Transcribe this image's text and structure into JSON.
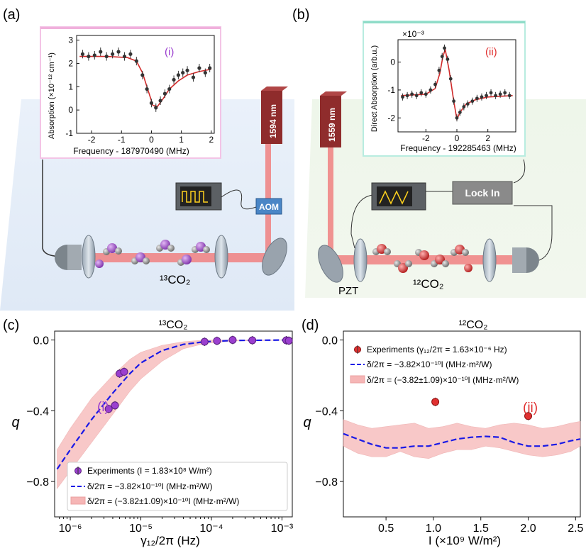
{
  "panels": {
    "a": {
      "label": "(a)",
      "inset": {
        "tag": "(i)",
        "ylabel": "Absorption (×10⁻¹² cm⁻¹)",
        "xlabel": "Frequency - 187970490 (MHz)",
        "yticks": [
          "3",
          "2",
          "1",
          "0",
          "-1"
        ],
        "xticks": [
          "-2",
          "-1",
          "0",
          "1",
          "2"
        ]
      },
      "laser": "1594 nm",
      "aom": "AOM",
      "gas": "¹³CO₂"
    },
    "b": {
      "label": "(b)",
      "inset": {
        "tag": "(ii)",
        "scale": "×10⁻³",
        "ylabel": "Direct Absorption (arb.u.)",
        "xlabel": "Frequency - 192285463 (MHz)",
        "yticks": [
          "0",
          "-1",
          "-2"
        ],
        "xticks": [
          "-2",
          "0",
          "2"
        ]
      },
      "laser": "1559 nm",
      "lockin": "Lock In",
      "pzt": "PZT",
      "gas": "¹²CO₂"
    },
    "c": {
      "label": "(c)",
      "title": "¹³CO₂",
      "ylabel": "q",
      "xlabel": "γ₁₂/2π (Hz)",
      "yticks": [
        "0.0",
        "−0.4",
        "−0.8"
      ],
      "xticks": [
        "10⁻⁶",
        "10⁻⁵",
        "10⁻⁴",
        "10⁻³"
      ],
      "annotation": "(i)",
      "legend": [
        "Experiments (I = 1.83×10⁸ W/m²)",
        "δ/2π = −3.82×10⁻¹⁰I (MHz·m²/W)",
        "δ/2π = (−3.82±1.09)×10⁻¹⁰I (MHz·m²/W)"
      ]
    },
    "d": {
      "label": "(d)",
      "title": "¹²CO₂",
      "ylabel": "q",
      "xlabel": "I (×10⁹ W/m²)",
      "yticks": [
        "0.0",
        "−0.4",
        "−0.8"
      ],
      "xticks": [
        "0.5",
        "1.0",
        "1.5",
        "2.0",
        "2.5"
      ],
      "annotation": "(ii)",
      "legend": [
        "Experiments (γ₁₂/2π = 1.63×10⁻⁶ Hz)",
        "δ/2π = −3.82×10⁻¹⁰I (MHz·m²/W)",
        "δ/2π = (−3.82±1.09)×10⁻¹⁰I (MHz·m²/W)"
      ]
    }
  },
  "colors": {
    "purple": "#9b3fcf",
    "red": "#e03030",
    "blue": "#1a1ae6",
    "band": "#f6b6b6",
    "laserbeam": "#f07070",
    "laserbox": "#8f2c2c"
  },
  "chart_data": [
    {
      "type": "scatter",
      "panel": "a-inset",
      "x": [
        -2.3,
        -2.1,
        -1.9,
        -1.7,
        -1.5,
        -1.3,
        -1.1,
        -0.9,
        -0.7,
        -0.5,
        -0.3,
        -0.15,
        0.0,
        0.15,
        0.3,
        0.45,
        0.6,
        0.75,
        0.9,
        1.05,
        1.2,
        1.4,
        1.6,
        1.8,
        1.95
      ],
      "y": [
        2.4,
        2.3,
        2.35,
        2.5,
        2.3,
        2.4,
        2.5,
        2.3,
        2.4,
        2.1,
        1.5,
        0.9,
        0.3,
        0.1,
        0.4,
        0.7,
        0.9,
        1.3,
        1.5,
        1.6,
        1.7,
        1.4,
        1.8,
        1.6,
        1.8
      ],
      "fit_x": [
        -2.4,
        -1.5,
        -0.8,
        -0.5,
        -0.3,
        -0.1,
        0.05,
        0.2,
        0.4,
        0.6,
        0.9,
        1.2,
        1.6,
        2.0
      ],
      "fit_y": [
        2.3,
        2.3,
        2.25,
        2.1,
        1.6,
        0.8,
        0.2,
        0.15,
        0.5,
        0.9,
        1.25,
        1.5,
        1.65,
        1.75
      ],
      "xlim": [
        -2.5,
        2.1
      ],
      "ylim": [
        -1,
        3.2
      ]
    },
    {
      "type": "scatter",
      "panel": "b-inset",
      "x": [
        -3.5,
        -3.2,
        -2.9,
        -2.6,
        -2.3,
        -2.0,
        -1.7,
        -1.4,
        -1.15,
        -0.95,
        -0.8,
        -0.6,
        -0.4,
        -0.2,
        0.0,
        0.2,
        0.45,
        0.7,
        1.0,
        1.3,
        1.6,
        1.9,
        2.2,
        2.5,
        2.8,
        3.1,
        3.4
      ],
      "y": [
        -1.25,
        -1.2,
        -1.15,
        -1.2,
        -1.1,
        -1.15,
        -1.0,
        -0.8,
        -0.3,
        0.2,
        0.5,
        0.1,
        -0.6,
        -1.4,
        -2.0,
        -1.8,
        -1.6,
        -1.5,
        -1.4,
        -1.3,
        -1.25,
        -1.2,
        -1.1,
        -1.2,
        -1.15,
        -1.1,
        -1.2
      ],
      "fit_x": [
        -3.6,
        -2.0,
        -1.4,
        -1.1,
        -0.9,
        -0.75,
        -0.5,
        -0.2,
        0.0,
        0.2,
        0.6,
        1.2,
        2.0,
        3.6
      ],
      "fit_y": [
        -1.2,
        -1.15,
        -0.95,
        -0.4,
        0.2,
        0.45,
        -0.3,
        -1.4,
        -2.05,
        -1.8,
        -1.5,
        -1.35,
        -1.25,
        -1.2
      ],
      "xlim": [
        -3.8,
        3.8
      ],
      "ylim": [
        -2.5,
        0.8
      ]
    },
    {
      "type": "scatter",
      "panel": "c",
      "xscale": "log",
      "title": "¹³CO₂",
      "xlabel": "γ₁₂/2π (Hz)",
      "ylabel": "q",
      "xlim": [
        6e-07,
        0.0014
      ],
      "ylim": [
        -1.0,
        0.05
      ],
      "series": [
        {
          "name": "Experiments (I = 1.83×10⁸ W/m²)",
          "x": [
            3.5e-06,
            4.3e-06,
            5e-06,
            5.8e-06,
            8e-05,
            0.00012,
            0.0002,
            0.00038,
            0.00115,
            0.00125
          ],
          "y": [
            -0.39,
            -0.37,
            -0.19,
            -0.18,
            -0.01,
            -0.005,
            0.0,
            -0.002,
            -0.002,
            -0.004
          ]
        },
        {
          "name": "δ/2π = −3.82×10⁻¹⁰I (MHz·m²/W)",
          "x": [
            6.5e-07,
            1e-06,
            2e-06,
            4e-06,
            7e-06,
            1e-05,
            2e-05,
            4e-05,
            8e-05,
            0.0002,
            0.0014
          ],
          "y": [
            -0.73,
            -0.62,
            -0.45,
            -0.3,
            -0.19,
            -0.13,
            -0.06,
            -0.025,
            -0.01,
            -0.003,
            0.0
          ]
        },
        {
          "name": "δ/2π = (−3.82±1.09)×10⁻¹⁰I (MHz·m²/W)",
          "x": [
            6.5e-07,
            1e-06,
            2e-06,
            4e-06,
            7e-06,
            1e-05,
            2e-05,
            4e-05,
            8e-05,
            0.0002,
            0.0014
          ],
          "upper": [
            -0.62,
            -0.5,
            -0.33,
            -0.2,
            -0.11,
            -0.07,
            -0.03,
            -0.01,
            0.0,
            0.0,
            0.0
          ],
          "lower": [
            -0.84,
            -0.74,
            -0.58,
            -0.42,
            -0.29,
            -0.22,
            -0.12,
            -0.05,
            -0.02,
            -0.006,
            0.0
          ]
        }
      ]
    },
    {
      "type": "scatter",
      "panel": "d",
      "title": "¹²CO₂",
      "xlabel": "I (×10⁹ W/m²)",
      "ylabel": "q",
      "xlim": [
        0.05,
        2.55
      ],
      "ylim": [
        -1.0,
        0.05
      ],
      "series": [
        {
          "name": "Experiments (γ₁₂/2π = 1.63×10⁻⁶ Hz)",
          "x": [
            1.02,
            2.0
          ],
          "y": [
            -0.35,
            -0.43
          ]
        },
        {
          "name": "δ/2π = −3.82×10⁻¹⁰I (MHz·m²/W)",
          "x": [
            0.05,
            0.2,
            0.35,
            0.5,
            0.65,
            0.8,
            0.95,
            1.1,
            1.25,
            1.4,
            1.55,
            1.7,
            1.85,
            2.0,
            2.15,
            2.3,
            2.45,
            2.55
          ],
          "y": [
            -0.53,
            -0.56,
            -0.59,
            -0.61,
            -0.61,
            -0.6,
            -0.6,
            -0.58,
            -0.56,
            -0.55,
            -0.545,
            -0.55,
            -0.58,
            -0.6,
            -0.6,
            -0.59,
            -0.57,
            -0.56
          ]
        },
        {
          "name": "δ/2π = (−3.82±1.09)×10⁻¹⁰I (MHz·m²/W)",
          "x": [
            0.05,
            0.2,
            0.35,
            0.5,
            0.65,
            0.8,
            0.95,
            1.1,
            1.25,
            1.4,
            1.55,
            1.7,
            1.85,
            2.0,
            2.15,
            2.3,
            2.45,
            2.55
          ],
          "upper": [
            -0.45,
            -0.48,
            -0.5,
            -0.49,
            -0.48,
            -0.47,
            -0.5,
            -0.49,
            -0.47,
            -0.49,
            -0.5,
            -0.48,
            -0.47,
            -0.48,
            -0.5,
            -0.49,
            -0.47,
            -0.46
          ],
          "lower": [
            -0.6,
            -0.64,
            -0.66,
            -0.66,
            -0.63,
            -0.66,
            -0.67,
            -0.64,
            -0.62,
            -0.62,
            -0.6,
            -0.61,
            -0.63,
            -0.65,
            -0.66,
            -0.65,
            -0.63,
            -0.6
          ]
        }
      ]
    }
  ]
}
